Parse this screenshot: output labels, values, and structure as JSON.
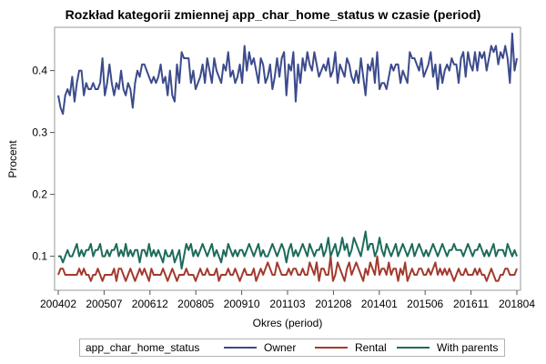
{
  "chart_data": {
    "type": "line",
    "title": "Rozkład kategorii zmiennej app_char_home_status w czasie (period)",
    "xlabel": "Okres (period)",
    "ylabel": "Procent",
    "x_start": "200402",
    "x_end": "201804",
    "x_ticks": [
      "200402",
      "200507",
      "200612",
      "200805",
      "200910",
      "201103",
      "201208",
      "201401",
      "201506",
      "201611",
      "201804"
    ],
    "y_ticks": [
      0.1,
      0.2,
      0.3,
      0.4
    ],
    "ylim": [
      0.045,
      0.47
    ],
    "grid": false,
    "legend": {
      "title": "app_char_home_status",
      "placement": "bottom"
    },
    "series": [
      {
        "name": "Owner",
        "color": "#3c4b8c",
        "values": [
          0.36,
          0.34,
          0.33,
          0.36,
          0.37,
          0.36,
          0.39,
          0.35,
          0.38,
          0.4,
          0.4,
          0.36,
          0.38,
          0.37,
          0.37,
          0.38,
          0.37,
          0.37,
          0.38,
          0.42,
          0.36,
          0.38,
          0.41,
          0.38,
          0.36,
          0.38,
          0.37,
          0.4,
          0.37,
          0.36,
          0.38,
          0.37,
          0.34,
          0.38,
          0.4,
          0.39,
          0.41,
          0.41,
          0.4,
          0.39,
          0.38,
          0.39,
          0.38,
          0.39,
          0.41,
          0.38,
          0.39,
          0.36,
          0.4,
          0.36,
          0.35,
          0.41,
          0.38,
          0.43,
          0.42,
          0.42,
          0.42,
          0.38,
          0.4,
          0.37,
          0.38,
          0.39,
          0.41,
          0.38,
          0.42,
          0.4,
          0.38,
          0.42,
          0.4,
          0.39,
          0.38,
          0.41,
          0.4,
          0.43,
          0.39,
          0.4,
          0.38,
          0.39,
          0.41,
          0.38,
          0.44,
          0.4,
          0.43,
          0.41,
          0.42,
          0.4,
          0.38,
          0.42,
          0.41,
          0.38,
          0.39,
          0.41,
          0.37,
          0.39,
          0.42,
          0.39,
          0.42,
          0.43,
          0.36,
          0.41,
          0.4,
          0.43,
          0.35,
          0.41,
          0.38,
          0.42,
          0.4,
          0.43,
          0.41,
          0.4,
          0.43,
          0.41,
          0.39,
          0.4,
          0.41,
          0.4,
          0.42,
          0.39,
          0.4,
          0.43,
          0.38,
          0.41,
          0.4,
          0.39,
          0.42,
          0.41,
          0.39,
          0.38,
          0.4,
          0.38,
          0.42,
          0.39,
          0.36,
          0.41,
          0.4,
          0.42,
          0.38,
          0.43,
          0.37,
          0.38,
          0.38,
          0.37,
          0.39,
          0.41,
          0.4,
          0.41,
          0.41,
          0.38,
          0.4,
          0.39,
          0.38,
          0.43,
          0.42,
          0.42,
          0.41,
          0.4,
          0.42,
          0.39,
          0.4,
          0.41,
          0.43,
          0.39,
          0.41,
          0.37,
          0.41,
          0.38,
          0.4,
          0.41,
          0.4,
          0.42,
          0.41,
          0.41,
          0.38,
          0.42,
          0.43,
          0.39,
          0.43,
          0.41,
          0.4,
          0.43,
          0.4,
          0.43,
          0.42,
          0.43,
          0.4,
          0.42,
          0.44,
          0.43,
          0.44,
          0.41,
          0.43,
          0.42,
          0.44,
          0.42,
          0.38,
          0.46,
          0.4,
          0.42
        ]
      },
      {
        "name": "Rental",
        "color": "#a23a2e",
        "values": [
          0.07,
          0.08,
          0.08,
          0.07,
          0.07,
          0.07,
          0.07,
          0.07,
          0.07,
          0.08,
          0.07,
          0.08,
          0.07,
          0.07,
          0.06,
          0.07,
          0.07,
          0.08,
          0.07,
          0.06,
          0.07,
          0.07,
          0.07,
          0.07,
          0.08,
          0.06,
          0.08,
          0.08,
          0.07,
          0.06,
          0.07,
          0.08,
          0.07,
          0.06,
          0.07,
          0.08,
          0.07,
          0.08,
          0.07,
          0.06,
          0.08,
          0.07,
          0.07,
          0.07,
          0.07,
          0.08,
          0.07,
          0.06,
          0.07,
          0.08,
          0.07,
          0.06,
          0.07,
          0.07,
          0.07,
          0.08,
          0.07,
          0.07,
          0.07,
          0.06,
          0.07,
          0.08,
          0.07,
          0.07,
          0.08,
          0.07,
          0.07,
          0.07,
          0.08,
          0.06,
          0.07,
          0.07,
          0.07,
          0.08,
          0.07,
          0.07,
          0.08,
          0.07,
          0.06,
          0.07,
          0.08,
          0.07,
          0.07,
          0.07,
          0.08,
          0.06,
          0.07,
          0.08,
          0.07,
          0.08,
          0.09,
          0.08,
          0.07,
          0.07,
          0.09,
          0.08,
          0.07,
          0.07,
          0.07,
          0.08,
          0.07,
          0.08,
          0.08,
          0.07,
          0.07,
          0.08,
          0.07,
          0.07,
          0.09,
          0.08,
          0.07,
          0.09,
          0.06,
          0.08,
          0.08,
          0.07,
          0.07,
          0.1,
          0.06,
          0.07,
          0.09,
          0.08,
          0.07,
          0.06,
          0.08,
          0.09,
          0.07,
          0.08,
          0.09,
          0.08,
          0.07,
          0.06,
          0.08,
          0.07,
          0.09,
          0.08,
          0.07,
          0.1,
          0.07,
          0.08,
          0.08,
          0.07,
          0.09,
          0.07,
          0.08,
          0.08,
          0.06,
          0.08,
          0.07,
          0.09,
          0.06,
          0.07,
          0.08,
          0.07,
          0.07,
          0.08,
          0.08,
          0.07,
          0.07,
          0.08,
          0.07,
          0.08,
          0.09,
          0.07,
          0.08,
          0.07,
          0.08,
          0.07,
          0.08,
          0.07,
          0.06,
          0.07,
          0.08,
          0.07,
          0.07,
          0.08,
          0.07,
          0.07,
          0.07,
          0.08,
          0.07,
          0.08,
          0.07,
          0.07,
          0.06,
          0.07,
          0.08,
          0.07,
          0.06,
          0.06,
          0.07,
          0.07,
          0.08,
          0.08,
          0.07,
          0.07,
          0.07,
          0.08
        ]
      },
      {
        "name": "With parents",
        "color": "#1d6b5a",
        "values": [
          0.1,
          0.1,
          0.09,
          0.1,
          0.11,
          0.1,
          0.1,
          0.11,
          0.12,
          0.1,
          0.11,
          0.1,
          0.11,
          0.11,
          0.12,
          0.1,
          0.11,
          0.11,
          0.12,
          0.1,
          0.1,
          0.11,
          0.1,
          0.11,
          0.11,
          0.12,
          0.1,
          0.11,
          0.1,
          0.12,
          0.1,
          0.11,
          0.1,
          0.11,
          0.11,
          0.09,
          0.11,
          0.11,
          0.1,
          0.12,
          0.1,
          0.11,
          0.1,
          0.11,
          0.1,
          0.09,
          0.11,
          0.1,
          0.1,
          0.11,
          0.09,
          0.1,
          0.11,
          0.08,
          0.1,
          0.12,
          0.11,
          0.12,
          0.1,
          0.11,
          0.1,
          0.11,
          0.12,
          0.11,
          0.1,
          0.11,
          0.12,
          0.1,
          0.11,
          0.1,
          0.09,
          0.11,
          0.1,
          0.12,
          0.11,
          0.1,
          0.11,
          0.1,
          0.11,
          0.11,
          0.1,
          0.11,
          0.12,
          0.11,
          0.1,
          0.11,
          0.12,
          0.1,
          0.11,
          0.1,
          0.1,
          0.11,
          0.12,
          0.11,
          0.1,
          0.11,
          0.12,
          0.11,
          0.09,
          0.11,
          0.12,
          0.1,
          0.11,
          0.1,
          0.11,
          0.12,
          0.11,
          0.1,
          0.12,
          0.11,
          0.1,
          0.11,
          0.11,
          0.12,
          0.1,
          0.11,
          0.13,
          0.1,
          0.11,
          0.12,
          0.1,
          0.11,
          0.13,
          0.11,
          0.12,
          0.1,
          0.11,
          0.13,
          0.12,
          0.11,
          0.1,
          0.12,
          0.14,
          0.11,
          0.12,
          0.12,
          0.1,
          0.11,
          0.13,
          0.11,
          0.1,
          0.12,
          0.11,
          0.1,
          0.11,
          0.12,
          0.1,
          0.11,
          0.12,
          0.11,
          0.1,
          0.11,
          0.12,
          0.1,
          0.11,
          0.12,
          0.11,
          0.1,
          0.11,
          0.1,
          0.11,
          0.12,
          0.11,
          0.1,
          0.11,
          0.12,
          0.11,
          0.1,
          0.11,
          0.11,
          0.12,
          0.11,
          0.11,
          0.11,
          0.1,
          0.11,
          0.12,
          0.11,
          0.1,
          0.11,
          0.11,
          0.12,
          0.11,
          0.1,
          0.11,
          0.1,
          0.11,
          0.12,
          0.1,
          0.11,
          0.11,
          0.11,
          0.1,
          0.12,
          0.11,
          0.1,
          0.11,
          0.1
        ]
      }
    ]
  }
}
